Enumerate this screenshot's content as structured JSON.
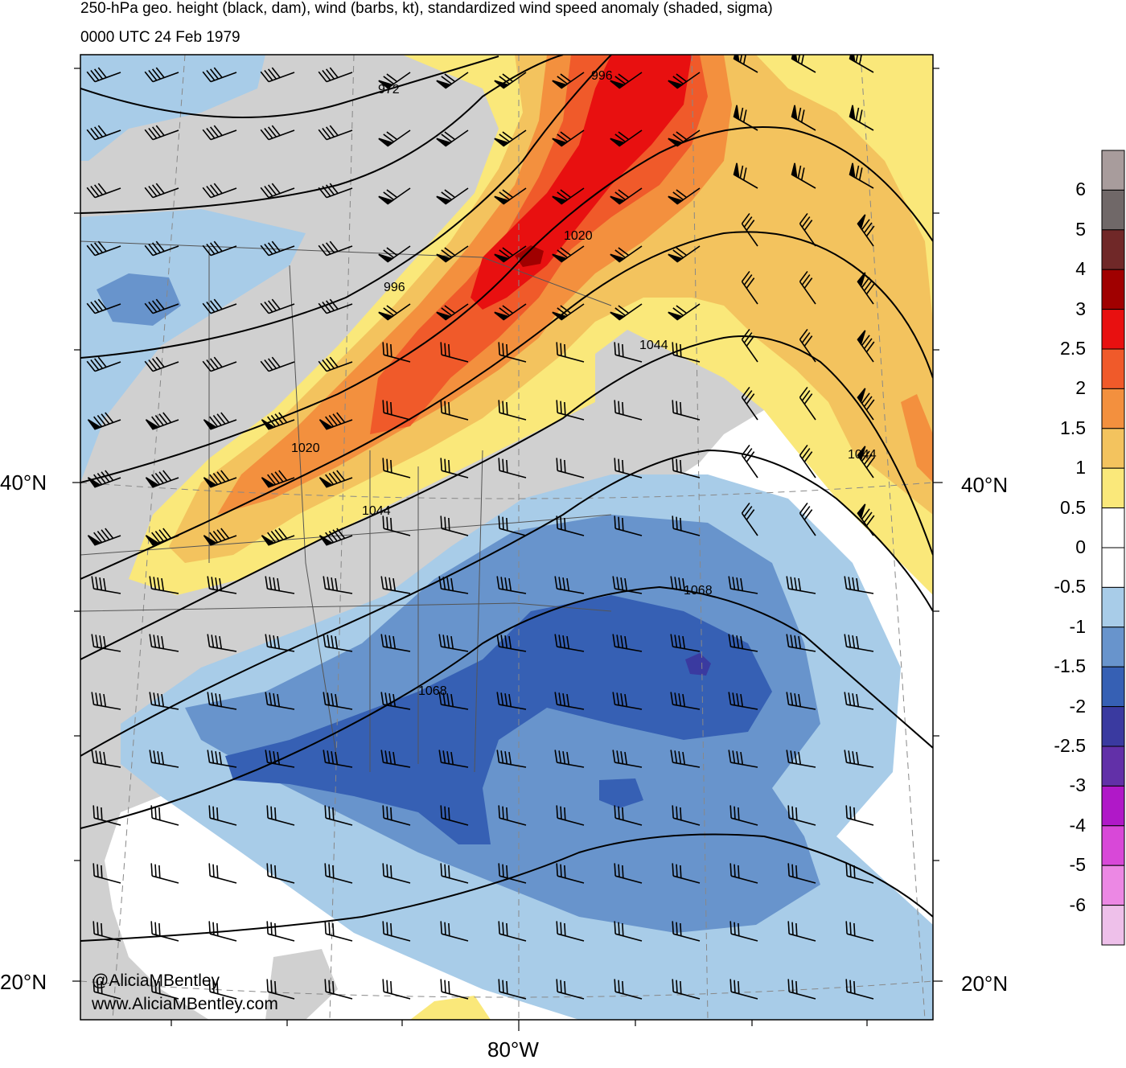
{
  "title_line1": "250-hPa geo. height (black, dam), wind (barbs, kt), standardized wind speed anomaly (shaded, sigma)",
  "title_line2": "0000 UTC 24 Feb 1979",
  "lat_labels": {
    "left_40": "40°N",
    "right_40": "40°N",
    "left_20": "20°N",
    "right_20": "20°N"
  },
  "lon_labels": {
    "bottom_80w": "80°W"
  },
  "credits": {
    "handle": "@AliciaMBentley",
    "website": "www.AliciaMBentley.com"
  },
  "contour_labels": [
    "972",
    "996",
    "996",
    "1020",
    "1020",
    "1044",
    "1044",
    "1044",
    "1068",
    "1068"
  ],
  "colorbar": {
    "labels": [
      "6",
      "5",
      "4",
      "3",
      "2.5",
      "2",
      "1.5",
      "1",
      "0.5",
      "0",
      "-0.5",
      "-1",
      "-1.5",
      "-2",
      "-2.5",
      "-3",
      "-4",
      "-5",
      "-6"
    ],
    "colors": [
      "#a89c9c",
      "#706868",
      "#702828",
      "#a00000",
      "#e81010",
      "#f05a2a",
      "#f3903e",
      "#f3c35e",
      "#fae87a",
      "#ffffff",
      "#ffffff",
      "#a8cce8",
      "#6894cc",
      "#3660b4",
      "#3a3aa0",
      "#6230a8",
      "#b018c8",
      "#d848d8",
      "#ec88e4",
      "#eec0ea"
    ]
  },
  "colors": {
    "land": "#d0d0d0",
    "neg_light": "#a8cce8",
    "neg_mid": "#6894cc",
    "neg_dark": "#3660b4",
    "neg_darker": "#3a3aa0",
    "pos_light": "#fae87a",
    "pos_mid": "#f3c35e",
    "pos_orange": "#f3903e",
    "pos_dark": "#f05a2a",
    "pos_red": "#e81010",
    "pos_darkred": "#a00000"
  }
}
